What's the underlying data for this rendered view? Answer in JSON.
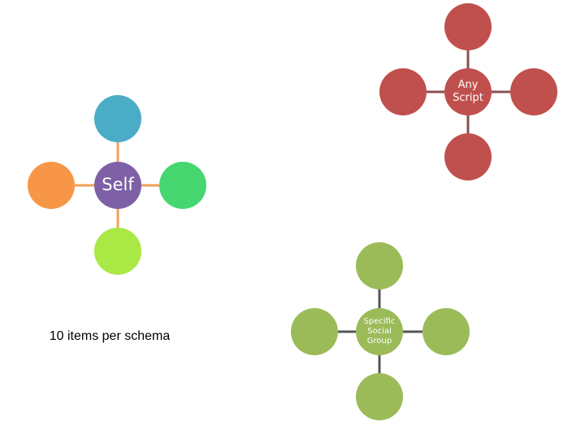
{
  "nodes": [
    {
      "label": "Self"
    },
    {
      "label": "Any Script"
    },
    {
      "label": "Specific Social Group"
    }
  ],
  "caption": "10 items per schema"
}
